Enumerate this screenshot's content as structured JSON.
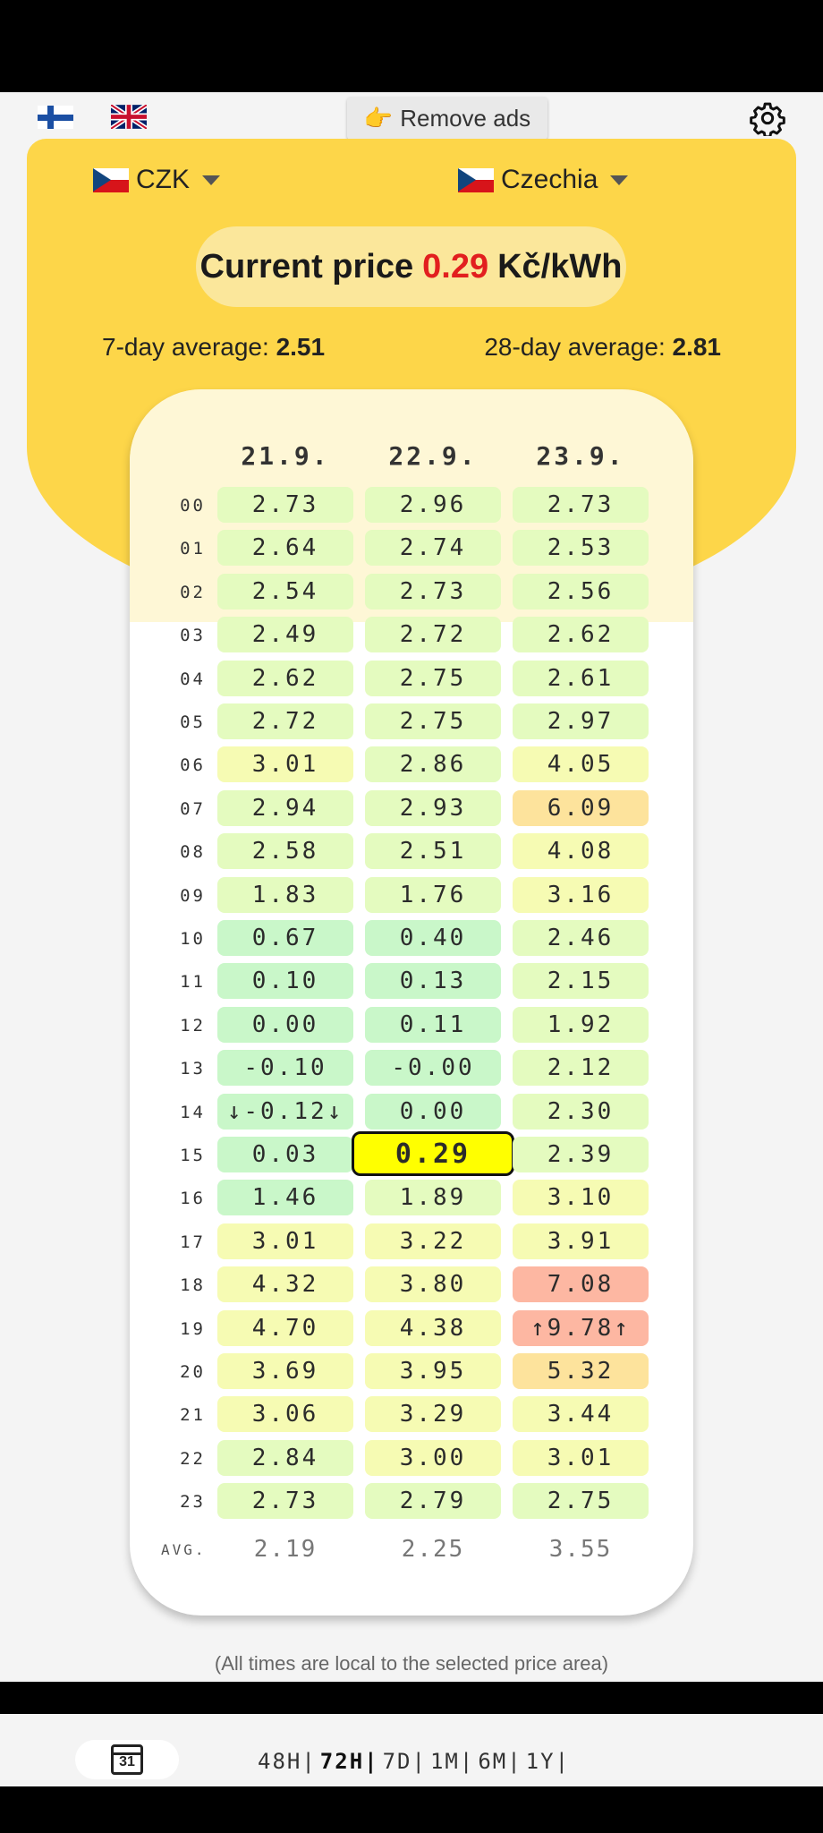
{
  "header": {
    "remove_ads_label": "Remove ads",
    "hand_icon": "👉",
    "language_flags": [
      "finland-flag",
      "uk-flag"
    ]
  },
  "selectors": {
    "currency": "CZK",
    "area": "Czechia"
  },
  "current": {
    "label": "Current price",
    "value": "0.29",
    "unit": "Kč/kWh",
    "value_color": "#e21f1f"
  },
  "averages": {
    "avg7_label": "7-day average:",
    "avg7_value": "2.51",
    "avg28_label": "28-day average:",
    "avg28_value": "2.81"
  },
  "table": {
    "dates": [
      "21.9.",
      "22.9.",
      "23.9."
    ],
    "hours": [
      "00",
      "01",
      "02",
      "03",
      "04",
      "05",
      "06",
      "07",
      "08",
      "09",
      "10",
      "11",
      "12",
      "13",
      "14",
      "15",
      "16",
      "17",
      "18",
      "19",
      "20",
      "21",
      "22",
      "23"
    ],
    "columns": [
      [
        "2.73",
        "2.64",
        "2.54",
        "2.49",
        "2.62",
        "2.72",
        "3.01",
        "2.94",
        "2.58",
        "1.83",
        "0.67",
        "0.10",
        "0.00",
        "-0.10",
        "↓-0.12↓",
        "0.03",
        "1.46",
        "3.01",
        "4.32",
        "4.70",
        "3.69",
        "3.06",
        "2.84",
        "2.73"
      ],
      [
        "2.96",
        "2.74",
        "2.73",
        "2.72",
        "2.75",
        "2.75",
        "2.86",
        "2.93",
        "2.51",
        "1.76",
        "0.40",
        "0.13",
        "0.11",
        "-0.00",
        "0.00",
        "0.29",
        "1.89",
        "3.22",
        "3.80",
        "4.38",
        "3.95",
        "3.29",
        "3.00",
        "2.79"
      ],
      [
        "2.73",
        "2.53",
        "2.56",
        "2.62",
        "2.61",
        "2.97",
        "4.05",
        "6.09",
        "4.08",
        "3.16",
        "2.46",
        "2.15",
        "1.92",
        "2.12",
        "2.30",
        "2.39",
        "3.10",
        "3.91",
        "7.08",
        "↑9.78↑",
        "5.32",
        "3.44",
        "3.01",
        "2.75"
      ]
    ],
    "current_cell": {
      "col": 1,
      "row": 15
    },
    "avg_label": "AVG.",
    "avgs": [
      "2.19",
      "2.25",
      "3.55"
    ]
  },
  "footer_note": "(All times are local to the selected price area)",
  "bottom_bar": {
    "calendar_day": "31",
    "ranges": [
      "48H|",
      "72H|",
      "7D|",
      "1M|",
      "6M|",
      "1Y|"
    ],
    "active_range": "72H|"
  },
  "colors": {
    "accent_yellow": "#fdd649",
    "current_highlight": "#ffff00",
    "low": "#c9f7c9",
    "mid": "#e4fbbf",
    "high": "#f6fbb3",
    "very_high": "#fde39c",
    "extreme": "#fdb7a2"
  }
}
